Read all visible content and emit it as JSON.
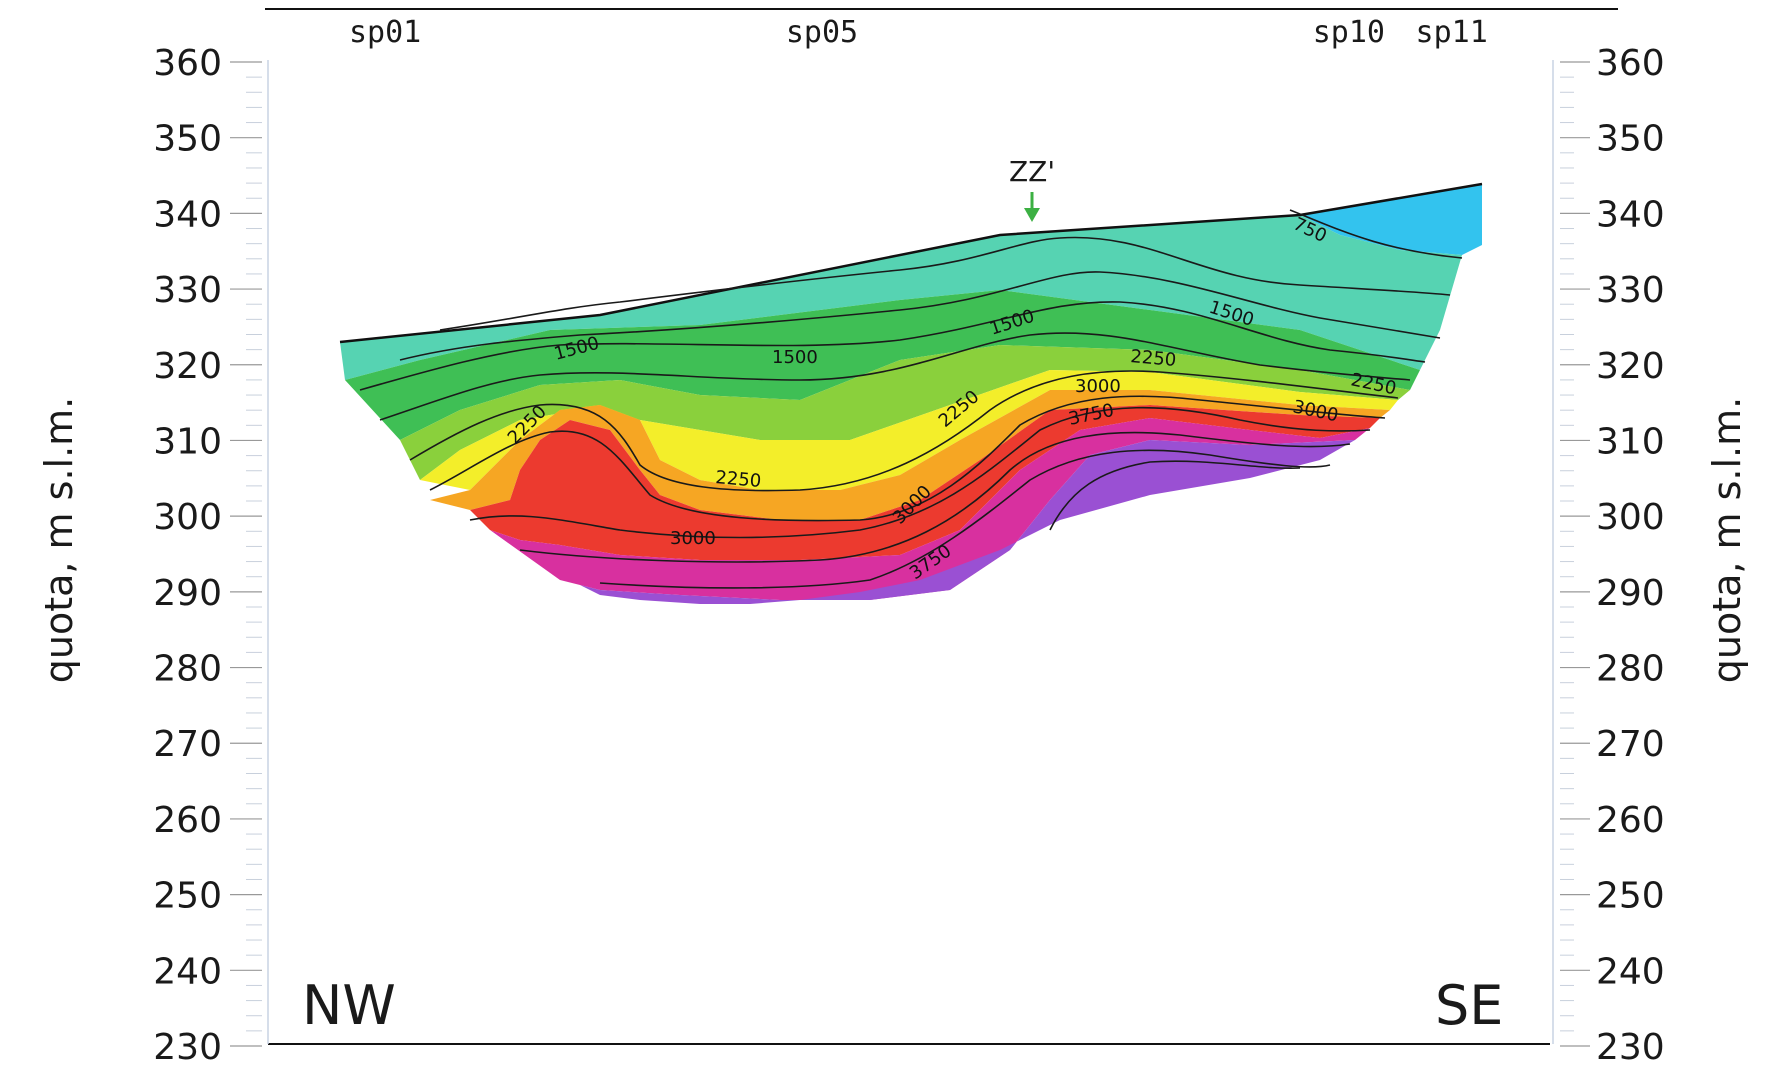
{
  "chart_data": {
    "type": "heatmap",
    "title": "",
    "ylabel_left": "quota, m s.l.m.",
    "ylabel_right": "quota, m s.l.m.",
    "ylim": [
      230,
      360
    ],
    "ytick_step": 10,
    "yticks": [
      360,
      350,
      340,
      330,
      320,
      310,
      300,
      290,
      280,
      270,
      260,
      250,
      240,
      230
    ],
    "top_labels": [
      {
        "text": "sp01",
        "position": 0.06
      },
      {
        "text": "sp05",
        "position": 0.4
      },
      {
        "text": "sp10",
        "position": 0.81
      },
      {
        "text": "sp11",
        "position": 0.89
      }
    ],
    "direction_left": "NW",
    "direction_right": "SE",
    "marker": {
      "text": "ZZ'",
      "color": "#3cb043"
    },
    "contour_labels": [
      "750",
      "1500",
      "1500",
      "1500",
      "1500",
      "2250",
      "2250",
      "2250",
      "2250",
      "2250",
      "3000",
      "3000",
      "3000",
      "3000",
      "3750",
      "3750"
    ],
    "color_scale": [
      "#33c3ee",
      "#56d3b2",
      "#3fbf55",
      "#8ad03c",
      "#f3ee2a",
      "#f6a623",
      "#ec3a2f",
      "#d8309f",
      "#9a50d3"
    ]
  }
}
